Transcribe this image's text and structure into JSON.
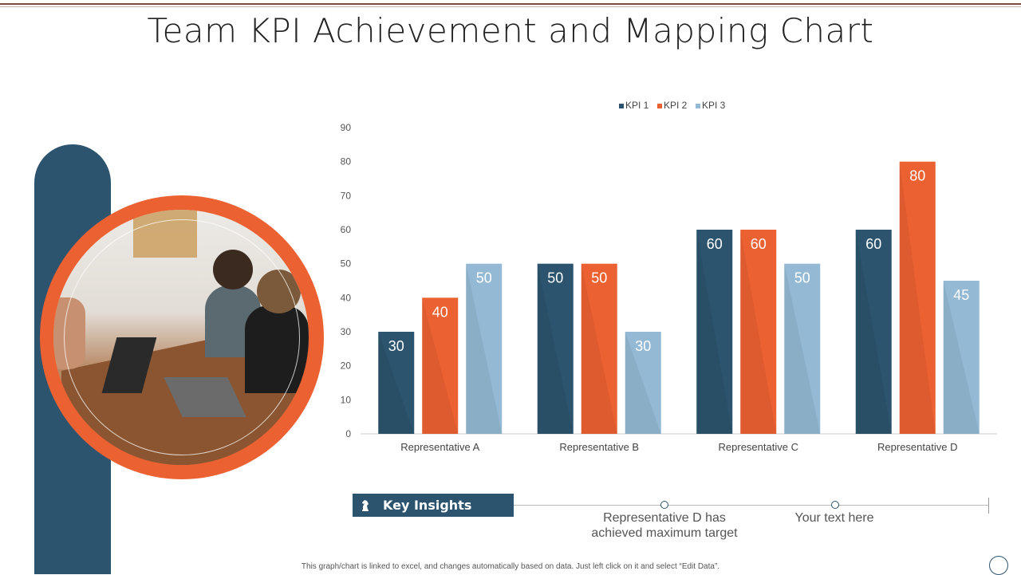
{
  "title": "Team KPI Achievement and Mapping Chart",
  "colors": {
    "kpi1": "#2c546e",
    "kpi2": "#ec6132",
    "kpi3": "#94b9d4",
    "accent": "#2c546e"
  },
  "chart_data": {
    "type": "bar",
    "categories": [
      "Representative A",
      "Representative B",
      "Representative C",
      "Representative D"
    ],
    "series": [
      {
        "name": "KPI 1",
        "values": [
          30,
          50,
          60,
          60
        ]
      },
      {
        "name": "KPI 2",
        "values": [
          40,
          50,
          60,
          80
        ]
      },
      {
        "name": "KPI 3",
        "values": [
          50,
          30,
          50,
          45
        ]
      }
    ],
    "ylim": [
      0,
      90
    ],
    "yticks": [
      0,
      10,
      20,
      30,
      40,
      50,
      60,
      70,
      80,
      90
    ],
    "legend": "top-center",
    "grid": false,
    "data_labels": true
  },
  "insights": {
    "label": "Key Insights",
    "icon": "chess-knight-icon",
    "items": [
      {
        "text_line1": "Representative  D has",
        "text_line2": "achieved maximum target"
      },
      {
        "text_line1": "Your text here",
        "text_line2": ""
      }
    ]
  },
  "footnote": "This graph/chart is linked to excel, and changes automatically based on data. Just left click on it and select “Edit Data”."
}
